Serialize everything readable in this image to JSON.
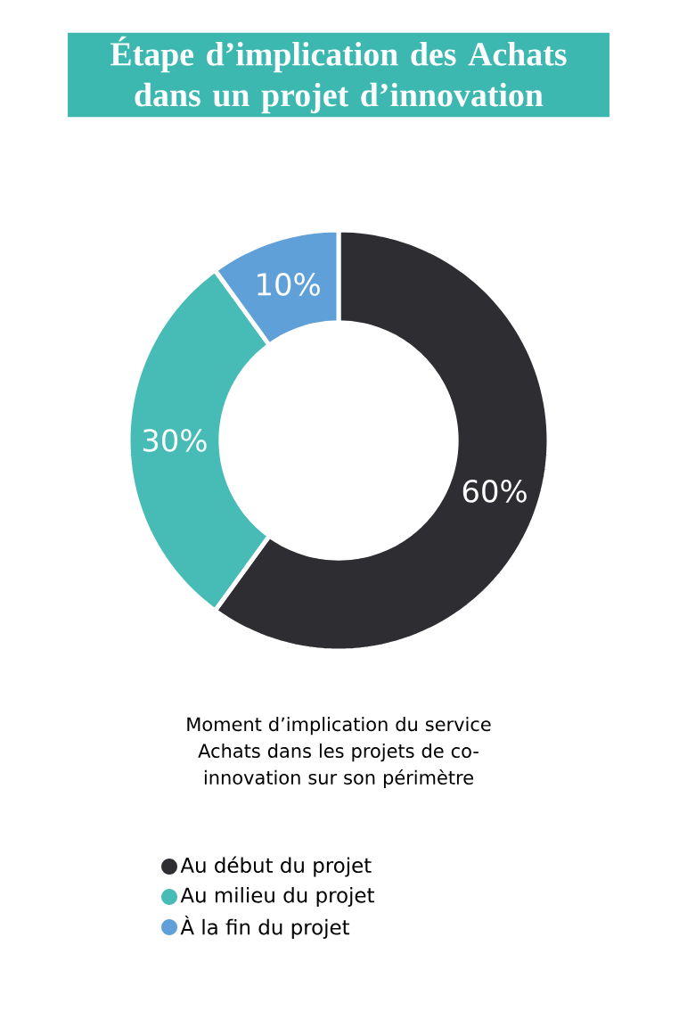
{
  "chart_data": {
    "type": "donut",
    "title": "Étape d’implication des Achats dans un projet d’innovation",
    "annotations": [
      "Moment d’implication du service Achats dans les projets de co-innovation sur son périmètre"
    ],
    "categories": [
      "Au début du projet",
      "Au milieu du projet",
      "À la fin du projet"
    ],
    "values": [
      60,
      30,
      10
    ],
    "colors": [
      "#2e2e32",
      "#47bcb6",
      "#5fa0d8"
    ],
    "value_labels": [
      "60%",
      "30%",
      "10%"
    ],
    "legend": "bottom"
  }
}
